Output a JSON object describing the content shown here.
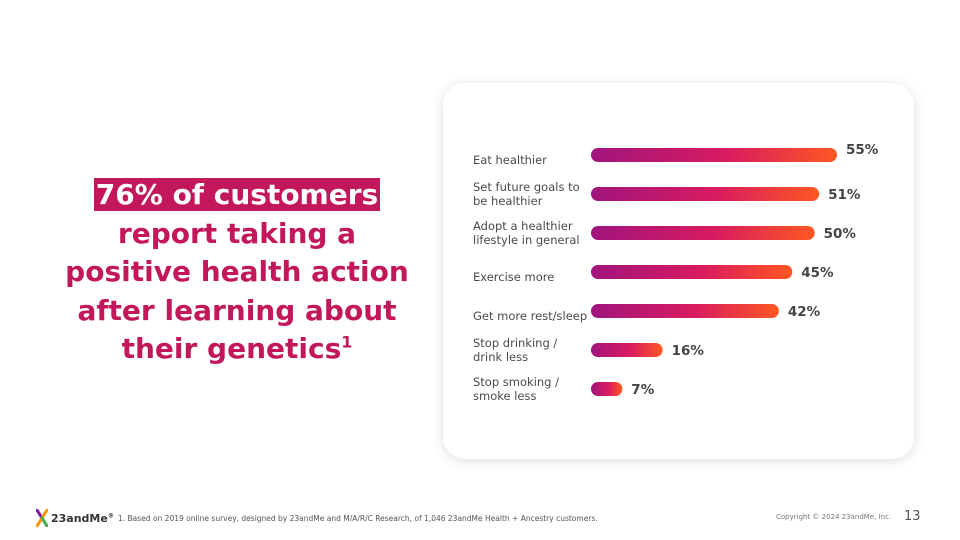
{
  "headline": {
    "line1": "76% of customers",
    "line2": "report taking a",
    "line3": "positive health action",
    "line4": "after learning about",
    "line5": "their genetics",
    "superscript": "1"
  },
  "colors": {
    "brand": "#c2185b",
    "bar_gradient_start": "#a0157d",
    "bar_gradient_mid": "#d81b60",
    "bar_gradient_end": "#ff5722"
  },
  "chart_data": {
    "type": "bar",
    "orientation": "horizontal",
    "categories": [
      [
        "Eat healthier"
      ],
      [
        "Set future goals to",
        "be healthier"
      ],
      [
        "Adopt a healthier",
        "lifestyle in general"
      ],
      [
        "Exercise more"
      ],
      [
        "Get more rest/sleep"
      ],
      [
        "Stop drinking /",
        "drink less"
      ],
      [
        "Stop smoking /",
        "smoke less"
      ]
    ],
    "values": [
      55,
      51,
      50,
      45,
      42,
      16,
      7
    ],
    "value_labels": [
      "55%",
      "51%",
      "50%",
      "45%",
      "42%",
      "16%",
      "7%"
    ],
    "unit": "%",
    "xlim": [
      0,
      55
    ],
    "grid": false,
    "axes_visible": false
  },
  "logo": {
    "text": "23andMe",
    "reg": "®"
  },
  "footnote": "1. Based on 2019 online survey, designed by 23andMe and M/A/R/C Research, of 1,046 23andMe Health + Ancestry customers.",
  "copyright": "Copyright © 2024 23andMe, Inc.",
  "page_number": "13"
}
